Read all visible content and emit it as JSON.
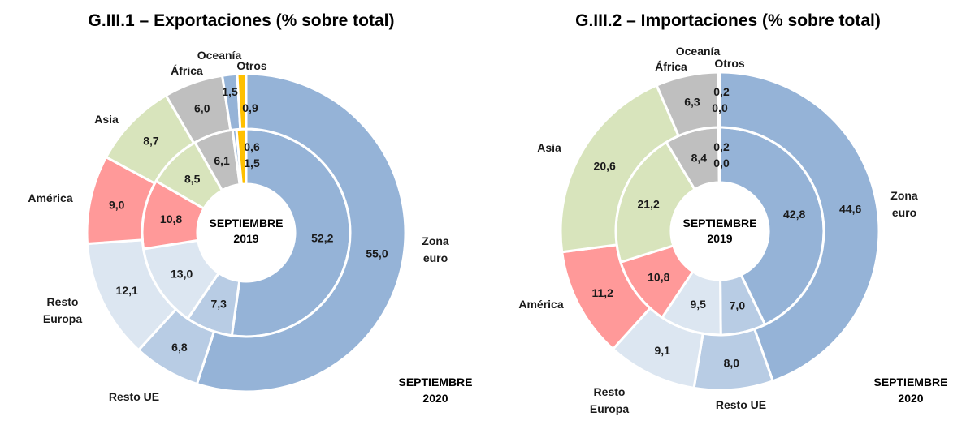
{
  "colors": {
    "zona_euro": "#95b3d7",
    "resto_ue": "#b8cce4",
    "resto_europa": "#dce6f1",
    "america": "#ff9999",
    "asia": "#d8e4bc",
    "africa": "#bfbfbf",
    "oceania": "#95b3d7",
    "otros": "#ffc000"
  },
  "chart_data": [
    {
      "type": "donut",
      "title": "G.III.1 – Exportaciones (% sobre total)",
      "inner_ring_label": [
        "SEPTIEMBRE",
        "2019"
      ],
      "outer_ring_label": [
        "SEPTIEMBRE",
        "2020"
      ],
      "categories": [
        "Zona euro",
        "Resto UE",
        "Resto Europa",
        "América",
        "Asia",
        "África",
        "Oceanía",
        "Otros"
      ],
      "category_labels": [
        [
          "Zona",
          "euro"
        ],
        [
          "Resto UE"
        ],
        [
          "Resto",
          "Europa"
        ],
        [
          "América"
        ],
        [
          "Asia"
        ],
        [
          "África"
        ],
        [
          "Oceanía"
        ],
        [
          "Otros"
        ]
      ],
      "series": [
        {
          "values": [
            52.2,
            7.3,
            13.0,
            10.8,
            8.5,
            6.1,
            0.6,
            1.5
          ],
          "labels": [
            "52,2",
            "7,3",
            "13,0",
            "10,8",
            "8,5",
            "6,1",
            "0,6",
            "1,5"
          ]
        },
        {
          "values": [
            55.0,
            6.8,
            12.1,
            9.0,
            8.7,
            6.0,
            1.5,
            0.9
          ],
          "labels": [
            "55,0",
            "6,8",
            "12,1",
            "9,0",
            "8,7",
            "6,0",
            "1,5",
            "0,9"
          ]
        }
      ]
    },
    {
      "type": "donut",
      "title": "G.III.2 – Importaciones (% sobre total)",
      "inner_ring_label": [
        "SEPTIEMBRE",
        "2019"
      ],
      "outer_ring_label": [
        "SEPTIEMBRE",
        "2020"
      ],
      "categories": [
        "Zona euro",
        "Resto UE",
        "Resto Europa",
        "América",
        "Asia",
        "África",
        "Oceanía",
        "Otros"
      ],
      "category_labels": [
        [
          "Zona",
          "euro"
        ],
        [
          "Resto UE"
        ],
        [
          "Resto",
          "Europa"
        ],
        [
          "América"
        ],
        [
          "Asia"
        ],
        [
          "África"
        ],
        [
          "Oceanía"
        ],
        [
          "Otros"
        ]
      ],
      "series": [
        {
          "values": [
            42.8,
            7.0,
            9.5,
            10.8,
            21.2,
            8.4,
            0.2,
            0.0
          ],
          "labels": [
            "42,8",
            "7,0",
            "9,5",
            "10,8",
            "21,2",
            "8,4",
            "0,2",
            "0,0"
          ]
        },
        {
          "values": [
            44.6,
            8.0,
            9.1,
            11.2,
            20.6,
            6.3,
            0.2,
            0.0
          ],
          "labels": [
            "44,6",
            "8,0",
            "9,1",
            "11,2",
            "20,6",
            "6,3",
            "0,2",
            "0,0"
          ]
        }
      ]
    }
  ]
}
